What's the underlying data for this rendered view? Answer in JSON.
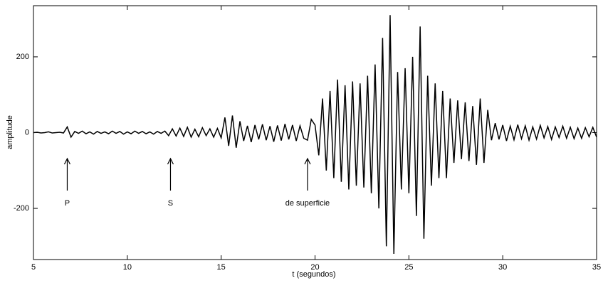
{
  "chart_data": {
    "type": "line",
    "x_label": "t (segundos)",
    "y_label": "amplitude",
    "color": "#000000",
    "xlim": [
      5,
      35
    ],
    "ylim": [
      -335,
      335
    ],
    "xticks": [
      5,
      10,
      15,
      20,
      25,
      30,
      35
    ],
    "yticks": [
      -200,
      0,
      200
    ],
    "annotations": [
      {
        "text": "P",
        "x": 6.8
      },
      {
        "text": "S",
        "x": 12.3
      },
      {
        "text": "de superficie",
        "x": 19.6
      }
    ],
    "x": [
      5,
      5.2,
      5.4,
      5.6,
      5.8,
      6,
      6.2,
      6.4,
      6.6,
      6.8,
      7,
      7.2,
      7.4,
      7.6,
      7.8,
      8,
      8.2,
      8.4,
      8.6,
      8.8,
      9,
      9.2,
      9.4,
      9.6,
      9.8,
      10,
      10.2,
      10.4,
      10.6,
      10.8,
      11,
      11.2,
      11.4,
      11.6,
      11.8,
      12,
      12.2,
      12.4,
      12.6,
      12.8,
      13,
      13.2,
      13.4,
      13.6,
      13.8,
      14,
      14.2,
      14.4,
      14.6,
      14.8,
      15,
      15.2,
      15.4,
      15.6,
      15.8,
      16,
      16.2,
      16.4,
      16.6,
      16.8,
      17,
      17.2,
      17.4,
      17.6,
      17.8,
      18,
      18.2,
      18.4,
      18.6,
      18.8,
      19,
      19.2,
      19.4,
      19.6,
      19.8,
      20,
      20.2,
      20.4,
      20.6,
      20.8,
      21,
      21.2,
      21.4,
      21.6,
      21.8,
      22,
      22.2,
      22.4,
      22.6,
      22.8,
      23,
      23.2,
      23.4,
      23.6,
      23.8,
      24,
      24.2,
      24.4,
      24.6,
      24.8,
      25,
      25.2,
      25.4,
      25.6,
      25.8,
      26,
      26.2,
      26.4,
      26.6,
      26.8,
      27,
      27.2,
      27.4,
      27.6,
      27.8,
      28,
      28.2,
      28.4,
      28.6,
      28.8,
      29,
      29.2,
      29.4,
      29.6,
      29.8,
      30,
      30.2,
      30.4,
      30.6,
      30.8,
      31,
      31.2,
      31.4,
      31.6,
      31.8,
      32,
      32.2,
      32.4,
      32.6,
      32.8,
      33,
      33.2,
      33.4,
      33.6,
      33.8,
      34,
      34.2,
      34.4,
      34.6,
      34.8,
      35
    ],
    "values": [
      0,
      1,
      -1,
      0,
      2,
      -1,
      0,
      1,
      -1,
      15,
      -12,
      3,
      -2,
      4,
      -3,
      2,
      -4,
      3,
      -2,
      2,
      -3,
      4,
      -2,
      3,
      -4,
      2,
      -3,
      4,
      -2,
      3,
      -3,
      2,
      -4,
      3,
      -2,
      4,
      -8,
      10,
      -9,
      12,
      -10,
      14,
      -12,
      9,
      -11,
      13,
      -8,
      10,
      -12,
      11,
      -14,
      40,
      -35,
      45,
      -40,
      30,
      -22,
      18,
      -25,
      20,
      -18,
      22,
      -20,
      17,
      -24,
      19,
      -21,
      23,
      -18,
      20,
      -22,
      18,
      -15,
      -20,
      35,
      20,
      -60,
      90,
      -100,
      110,
      -120,
      140,
      -130,
      125,
      -150,
      135,
      -140,
      130,
      -145,
      150,
      -160,
      180,
      -200,
      250,
      -300,
      310,
      -320,
      160,
      -150,
      170,
      -160,
      200,
      -220,
      280,
      -280,
      150,
      -140,
      130,
      -120,
      110,
      -120,
      90,
      -80,
      85,
      -70,
      80,
      -75,
      70,
      -85,
      90,
      -80,
      60,
      -20,
      25,
      -18,
      20,
      -22,
      17,
      -19,
      21,
      -16,
      18,
      -20,
      15,
      -17,
      19,
      -14,
      16,
      -18,
      15,
      -13,
      17,
      -15,
      14,
      -16,
      12,
      -15,
      13,
      -11,
      14,
      -12
    ]
  }
}
